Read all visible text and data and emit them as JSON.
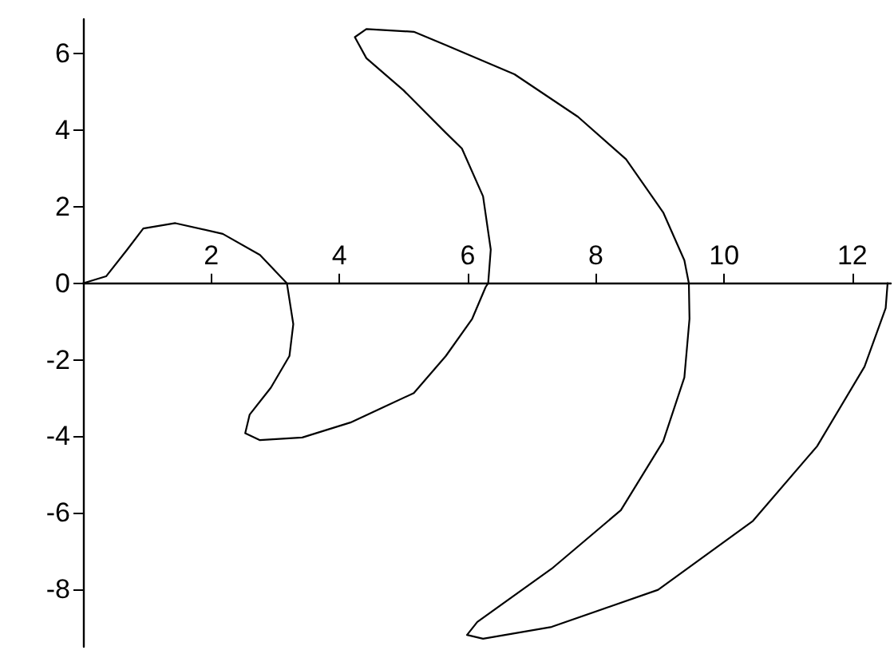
{
  "chart_data": {
    "type": "line",
    "xlim": [
      0,
      12.6
    ],
    "ylim": [
      -9.5,
      6.9
    ],
    "xticks": [
      2,
      4,
      6,
      8,
      10,
      12
    ],
    "yticks": [
      -8,
      -6,
      -4,
      -2,
      0,
      2,
      4,
      6
    ],
    "grid": false,
    "marker": "none",
    "line_style": "solid",
    "series": [
      {
        "color": "#000000",
        "x": [
          0,
          0.36,
          0.69,
          0.94,
          1.44,
          2.18,
          2.76,
          3.18,
          3.28,
          3.22,
          2.93,
          2.6,
          2.53,
          2.76,
          3.42,
          4.17,
          5.16,
          5.66,
          6.07,
          6.28,
          6.32,
          6.36,
          6.24,
          5.91,
          5.66,
          5.0,
          4.42,
          4.24,
          4.42,
          5.16,
          5.66,
          6.73,
          7.72,
          8.47,
          9.05,
          9.38,
          9.45,
          9.46,
          9.38,
          9.05,
          8.39,
          7.31,
          6.15,
          5.99,
          6.24,
          7.31,
          8.97,
          10.45,
          11.45,
          12.19,
          12.52,
          12.55
        ],
        "values": [
          0,
          0.18,
          0.88,
          1.43,
          1.57,
          1.29,
          0.74,
          0,
          -1.07,
          -1.9,
          -2.73,
          -3.43,
          -3.92,
          -4.1,
          -4.03,
          -3.64,
          -2.87,
          -1.9,
          -0.93,
          -0.1,
          0,
          0.88,
          2.27,
          3.52,
          3.93,
          5.04,
          5.88,
          6.43,
          6.64,
          6.57,
          6.22,
          5.46,
          4.35,
          3.24,
          1.85,
          0.6,
          0,
          -0.93,
          -2.46,
          -4.13,
          -5.93,
          -7.46,
          -8.85,
          -9.19,
          -9.29,
          -8.98,
          -8.01,
          -6.21,
          -4.26,
          -2.18,
          -0.65,
          0
        ]
      }
    ]
  }
}
